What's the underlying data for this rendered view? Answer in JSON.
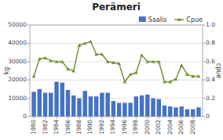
{
  "chart_data": {
    "type": "bar",
    "title": "Perämeri",
    "x": [
      1980,
      1981,
      1982,
      1983,
      1984,
      1985,
      1986,
      1987,
      1988,
      1989,
      1990,
      1991,
      1992,
      1993,
      1994,
      1995,
      1996,
      1997,
      1998,
      1999,
      2000,
      2001,
      2002,
      2003,
      2004,
      2005,
      2006,
      2007,
      2008,
      2009
    ],
    "series": [
      {
        "name": "Saalis",
        "type": "bar",
        "color": "#4472c4",
        "values": [
          13500,
          15000,
          13000,
          13000,
          19000,
          18500,
          14500,
          11500,
          10000,
          14000,
          11000,
          11000,
          13000,
          13000,
          8500,
          7500,
          7500,
          7500,
          11000,
          11500,
          12000,
          10000,
          9500,
          6000,
          5500,
          5000,
          5500,
          4000,
          4000,
          5000
        ]
      },
      {
        "name": "Cpue",
        "type": "line",
        "axis": "y2",
        "color": "#76933c",
        "marker": "triangle",
        "values": [
          0.44,
          0.63,
          0.64,
          0.61,
          0.6,
          0.6,
          0.52,
          0.5,
          0.78,
          0.8,
          0.82,
          0.68,
          0.68,
          0.6,
          0.59,
          0.58,
          0.38,
          0.46,
          0.48,
          0.67,
          0.6,
          0.6,
          0.6,
          0.38,
          0.38,
          0.41,
          0.56,
          0.46,
          0.44,
          0.44
        ]
      }
    ],
    "xlim": [
      1979.3,
      2009.7
    ],
    "xticks": [
      1980,
      1982,
      1984,
      1986,
      1988,
      1990,
      1992,
      1994,
      1996,
      1998,
      2000,
      2002,
      2004,
      2006,
      2008
    ],
    "ylabel": "kg",
    "ylim": [
      0,
      50000
    ],
    "yticks": [
      0,
      10000,
      20000,
      30000,
      40000,
      50000
    ],
    "y2label": "cpue",
    "y2lim": [
      0,
      1.0
    ],
    "y2ticks": [
      0,
      0.2,
      0.4,
      0.6,
      0.8,
      {
        "value": 1.0,
        "label": "1.0"
      }
    ],
    "grid": true,
    "legend": "upper right"
  }
}
